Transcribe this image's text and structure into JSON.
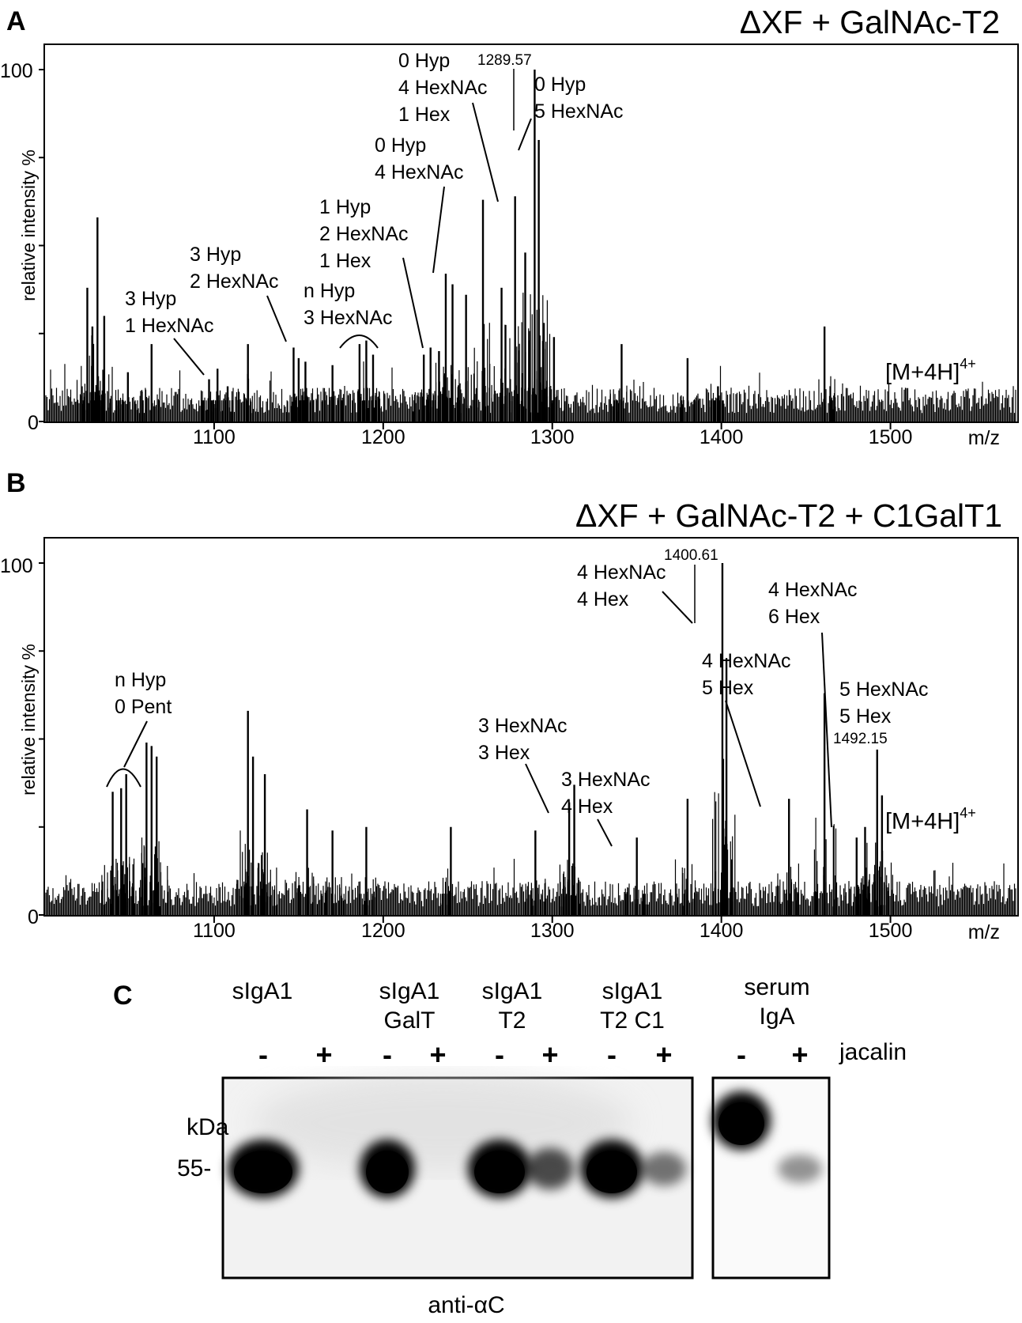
{
  "figure": {
    "panelA": {
      "letter": "A",
      "title": "ΔXF + GalNAc-T2",
      "ion_label": "[M+4H]",
      "ion_charge": "4+",
      "peak_label": "1289.57",
      "annotations": [
        {
          "lines": [
            "3 Hyp",
            "1 HexNAc"
          ]
        },
        {
          "lines": [
            "3 Hyp",
            "2 HexNAc"
          ]
        },
        {
          "lines": [
            "n Hyp",
            "3 HexNAc"
          ]
        },
        {
          "lines": [
            "1 Hyp",
            "2 HexNAc",
            "1 Hex"
          ]
        },
        {
          "lines": [
            "0 Hyp",
            "4 HexNAc"
          ]
        },
        {
          "lines": [
            "0 Hyp",
            "4 HexNAc",
            "1 Hex"
          ]
        },
        {
          "lines": [
            "0 Hyp",
            "5 HexNAc"
          ]
        }
      ]
    },
    "panelB": {
      "letter": "B",
      "title": "ΔXF + GalNAc-T2 + C1GalT1",
      "ion_label": "[M+4H]",
      "ion_charge": "4+",
      "peak_labels": [
        "1400.61",
        "1492.15"
      ],
      "annotations": [
        {
          "lines": [
            "n Hyp",
            "0 Pent"
          ]
        },
        {
          "lines": [
            "3 HexNAc",
            "3 Hex"
          ]
        },
        {
          "lines": [
            "3 HexNAc",
            "4 Hex"
          ]
        },
        {
          "lines": [
            "4 HexNAc",
            "4 Hex"
          ]
        },
        {
          "lines": [
            "4 HexNAc",
            "5 Hex"
          ]
        },
        {
          "lines": [
            "4 HexNAc",
            "6 Hex"
          ]
        },
        {
          "lines": [
            "5 HexNAc",
            "5 Hex"
          ]
        }
      ]
    },
    "panelC": {
      "letter": "C",
      "lanes": [
        {
          "lines": [
            "sIgA1"
          ]
        },
        {
          "lines": [
            "sIgA1",
            "GalT"
          ]
        },
        {
          "lines": [
            "sIgA1",
            "T2"
          ]
        },
        {
          "lines": [
            "sIgA1",
            "T2 C1"
          ]
        },
        {
          "lines": [
            "serum",
            "IgA"
          ]
        }
      ],
      "minus": "-",
      "plus": "+",
      "treatment": "jacalin",
      "kda_label": "kDa",
      "marker": "55-",
      "antibody": "anti-αC",
      "band_intensity": [
        1.0,
        0.0,
        1.0,
        0.0,
        1.0,
        0.55,
        1.0,
        0.35,
        1.0,
        0.2
      ]
    }
  },
  "chart_data": [
    {
      "type": "line",
      "title": "ΔXF + GalNAc-T2",
      "xlabel": "m/z",
      "ylabel": "relative intensity %",
      "xlim": [
        1000,
        1575
      ],
      "ylim": [
        0,
        100
      ],
      "x_ticks": [
        "1100",
        "1200",
        "1300",
        "1400",
        "1500"
      ],
      "y_ticks": [
        "0",
        "100"
      ],
      "peaks": {
        "x": [
          1025,
          1028,
          1031,
          1035,
          1049,
          1063,
          1097,
          1102,
          1108,
          1120,
          1147,
          1150,
          1154,
          1170,
          1186,
          1190,
          1194,
          1224,
          1228,
          1233,
          1237,
          1241,
          1249,
          1259,
          1270,
          1278,
          1284,
          1289.57,
          1292,
          1295,
          1301,
          1341,
          1380,
          1398,
          1461
        ],
        "y": [
          38,
          27,
          58,
          30,
          14,
          22,
          12,
          15,
          10,
          22,
          21,
          18,
          17,
          16,
          22,
          23,
          19,
          19,
          21,
          20,
          42,
          39,
          36,
          63,
          38,
          64,
          48,
          100,
          80,
          28,
          24,
          22,
          18,
          10,
          27
        ]
      },
      "baseline": 6
    },
    {
      "type": "line",
      "title": "ΔXF + GalNAc-T2 + C1GalT1",
      "xlabel": "m/z",
      "ylabel": "relative intensity %",
      "xlim": [
        1000,
        1575
      ],
      "ylim": [
        0,
        100
      ],
      "x_ticks": [
        "1100",
        "1200",
        "1300",
        "1400",
        "1500"
      ],
      "y_ticks": [
        "0",
        "100"
      ],
      "peaks": {
        "x": [
          1040,
          1045,
          1048,
          1060,
          1063,
          1066,
          1120,
          1123,
          1130,
          1155,
          1170,
          1190,
          1240,
          1290,
          1310,
          1313,
          1350,
          1380,
          1400.61,
          1403,
          1440,
          1461,
          1480,
          1485,
          1492.15,
          1495
        ],
        "y": [
          35,
          36,
          40,
          49,
          48,
          45,
          58,
          45,
          40,
          30,
          24,
          25,
          25,
          24,
          32,
          37,
          22,
          33,
          100,
          73,
          33,
          63,
          22,
          25,
          47,
          34
        ]
      },
      "baseline": 6
    }
  ]
}
